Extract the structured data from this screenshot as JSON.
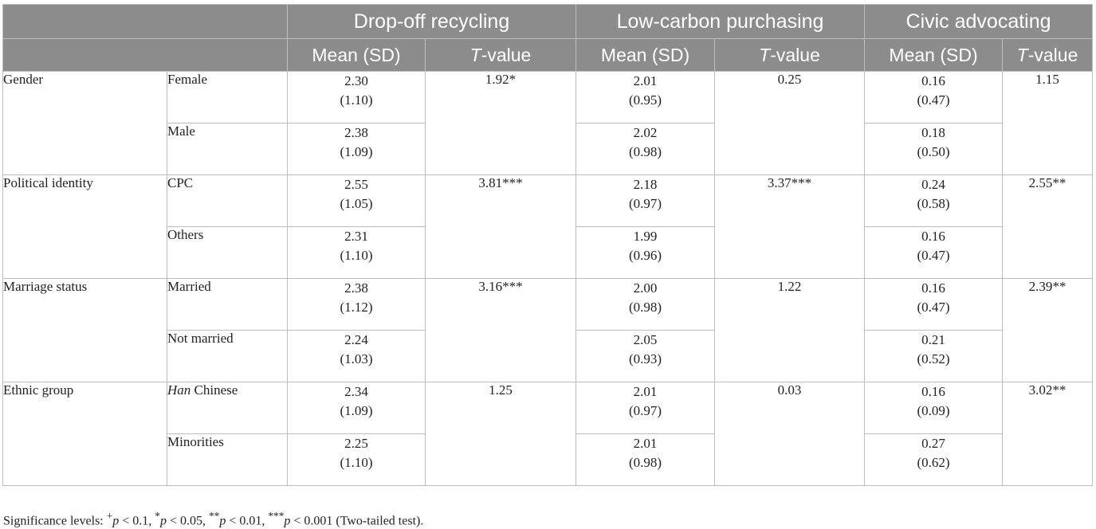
{
  "table": {
    "groups": [
      "Drop-off recycling",
      "Low-carbon purchasing",
      "Civic advocating"
    ],
    "mean_label": "Mean (SD)",
    "t_label_italic": "T",
    "t_label_suffix": "-value",
    "rows": [
      {
        "category": "Gender",
        "subgroup": "Female",
        "drop_mean": "2.30",
        "drop_sd": "(1.10)",
        "drop_t": "1.92*",
        "low_mean": "2.01",
        "low_sd": "(0.95)",
        "low_t": "0.25",
        "civic_mean": "0.16",
        "civic_sd": "(0.47)",
        "civic_t": "1.15"
      },
      {
        "subgroup": "Male",
        "drop_mean": "2.38",
        "drop_sd": "(1.09)",
        "low_mean": "2.02",
        "low_sd": "(0.98)",
        "civic_mean": "0.18",
        "civic_sd": "(0.50)"
      },
      {
        "category": "Political identity",
        "subgroup": "CPC",
        "drop_mean": "2.55",
        "drop_sd": "(1.05)",
        "drop_t": "3.81***",
        "low_mean": "2.18",
        "low_sd": "(0.97)",
        "low_t": "3.37***",
        "civic_mean": "0.24",
        "civic_sd": "(0.58)",
        "civic_t": "2.55**"
      },
      {
        "subgroup": "Others",
        "drop_mean": "2.31",
        "drop_sd": "(1.10)",
        "low_mean": "1.99",
        "low_sd": "(0.96)",
        "civic_mean": "0.16",
        "civic_sd": "(0.47)"
      },
      {
        "category": "Marriage status",
        "subgroup": "Married",
        "drop_mean": "2.38",
        "drop_sd": "(1.12)",
        "drop_t": "3.16***",
        "low_mean": "2.00",
        "low_sd": "(0.98)",
        "low_t": "1.22",
        "civic_mean": "0.16",
        "civic_sd": "(0.47)",
        "civic_t": "2.39**"
      },
      {
        "subgroup": "Not married",
        "drop_mean": "2.24",
        "drop_sd": "(1.03)",
        "low_mean": "2.05",
        "low_sd": "(0.93)",
        "civic_mean": "0.21",
        "civic_sd": "(0.52)"
      },
      {
        "category": "Ethnic group",
        "subgroup_italic": "Han",
        "subgroup_rest": " Chinese",
        "drop_mean": "2.34",
        "drop_sd": "(1.09)",
        "drop_t": "1.25",
        "low_mean": "2.01",
        "low_sd": "(0.97)",
        "low_t": "0.03",
        "civic_mean": "0.16",
        "civic_sd": "(0.09)",
        "civic_t": "3.02**"
      },
      {
        "subgroup": "Minorities",
        "drop_mean": "2.25",
        "drop_sd": "(1.10)",
        "low_mean": "2.01",
        "low_sd": "(0.98)",
        "civic_mean": "0.27",
        "civic_sd": "(0.62)"
      }
    ]
  },
  "footnote": {
    "lead": "Significance levels: ",
    "plus_sup": "+",
    "p": "p",
    "t1": " < 0.1, ",
    "star1": "*",
    "t2": " < 0.05, ",
    "star2": "**",
    "t3": " < 0.01, ",
    "star3": "***",
    "t4": " < 0.001 (Two-tailed test)."
  }
}
